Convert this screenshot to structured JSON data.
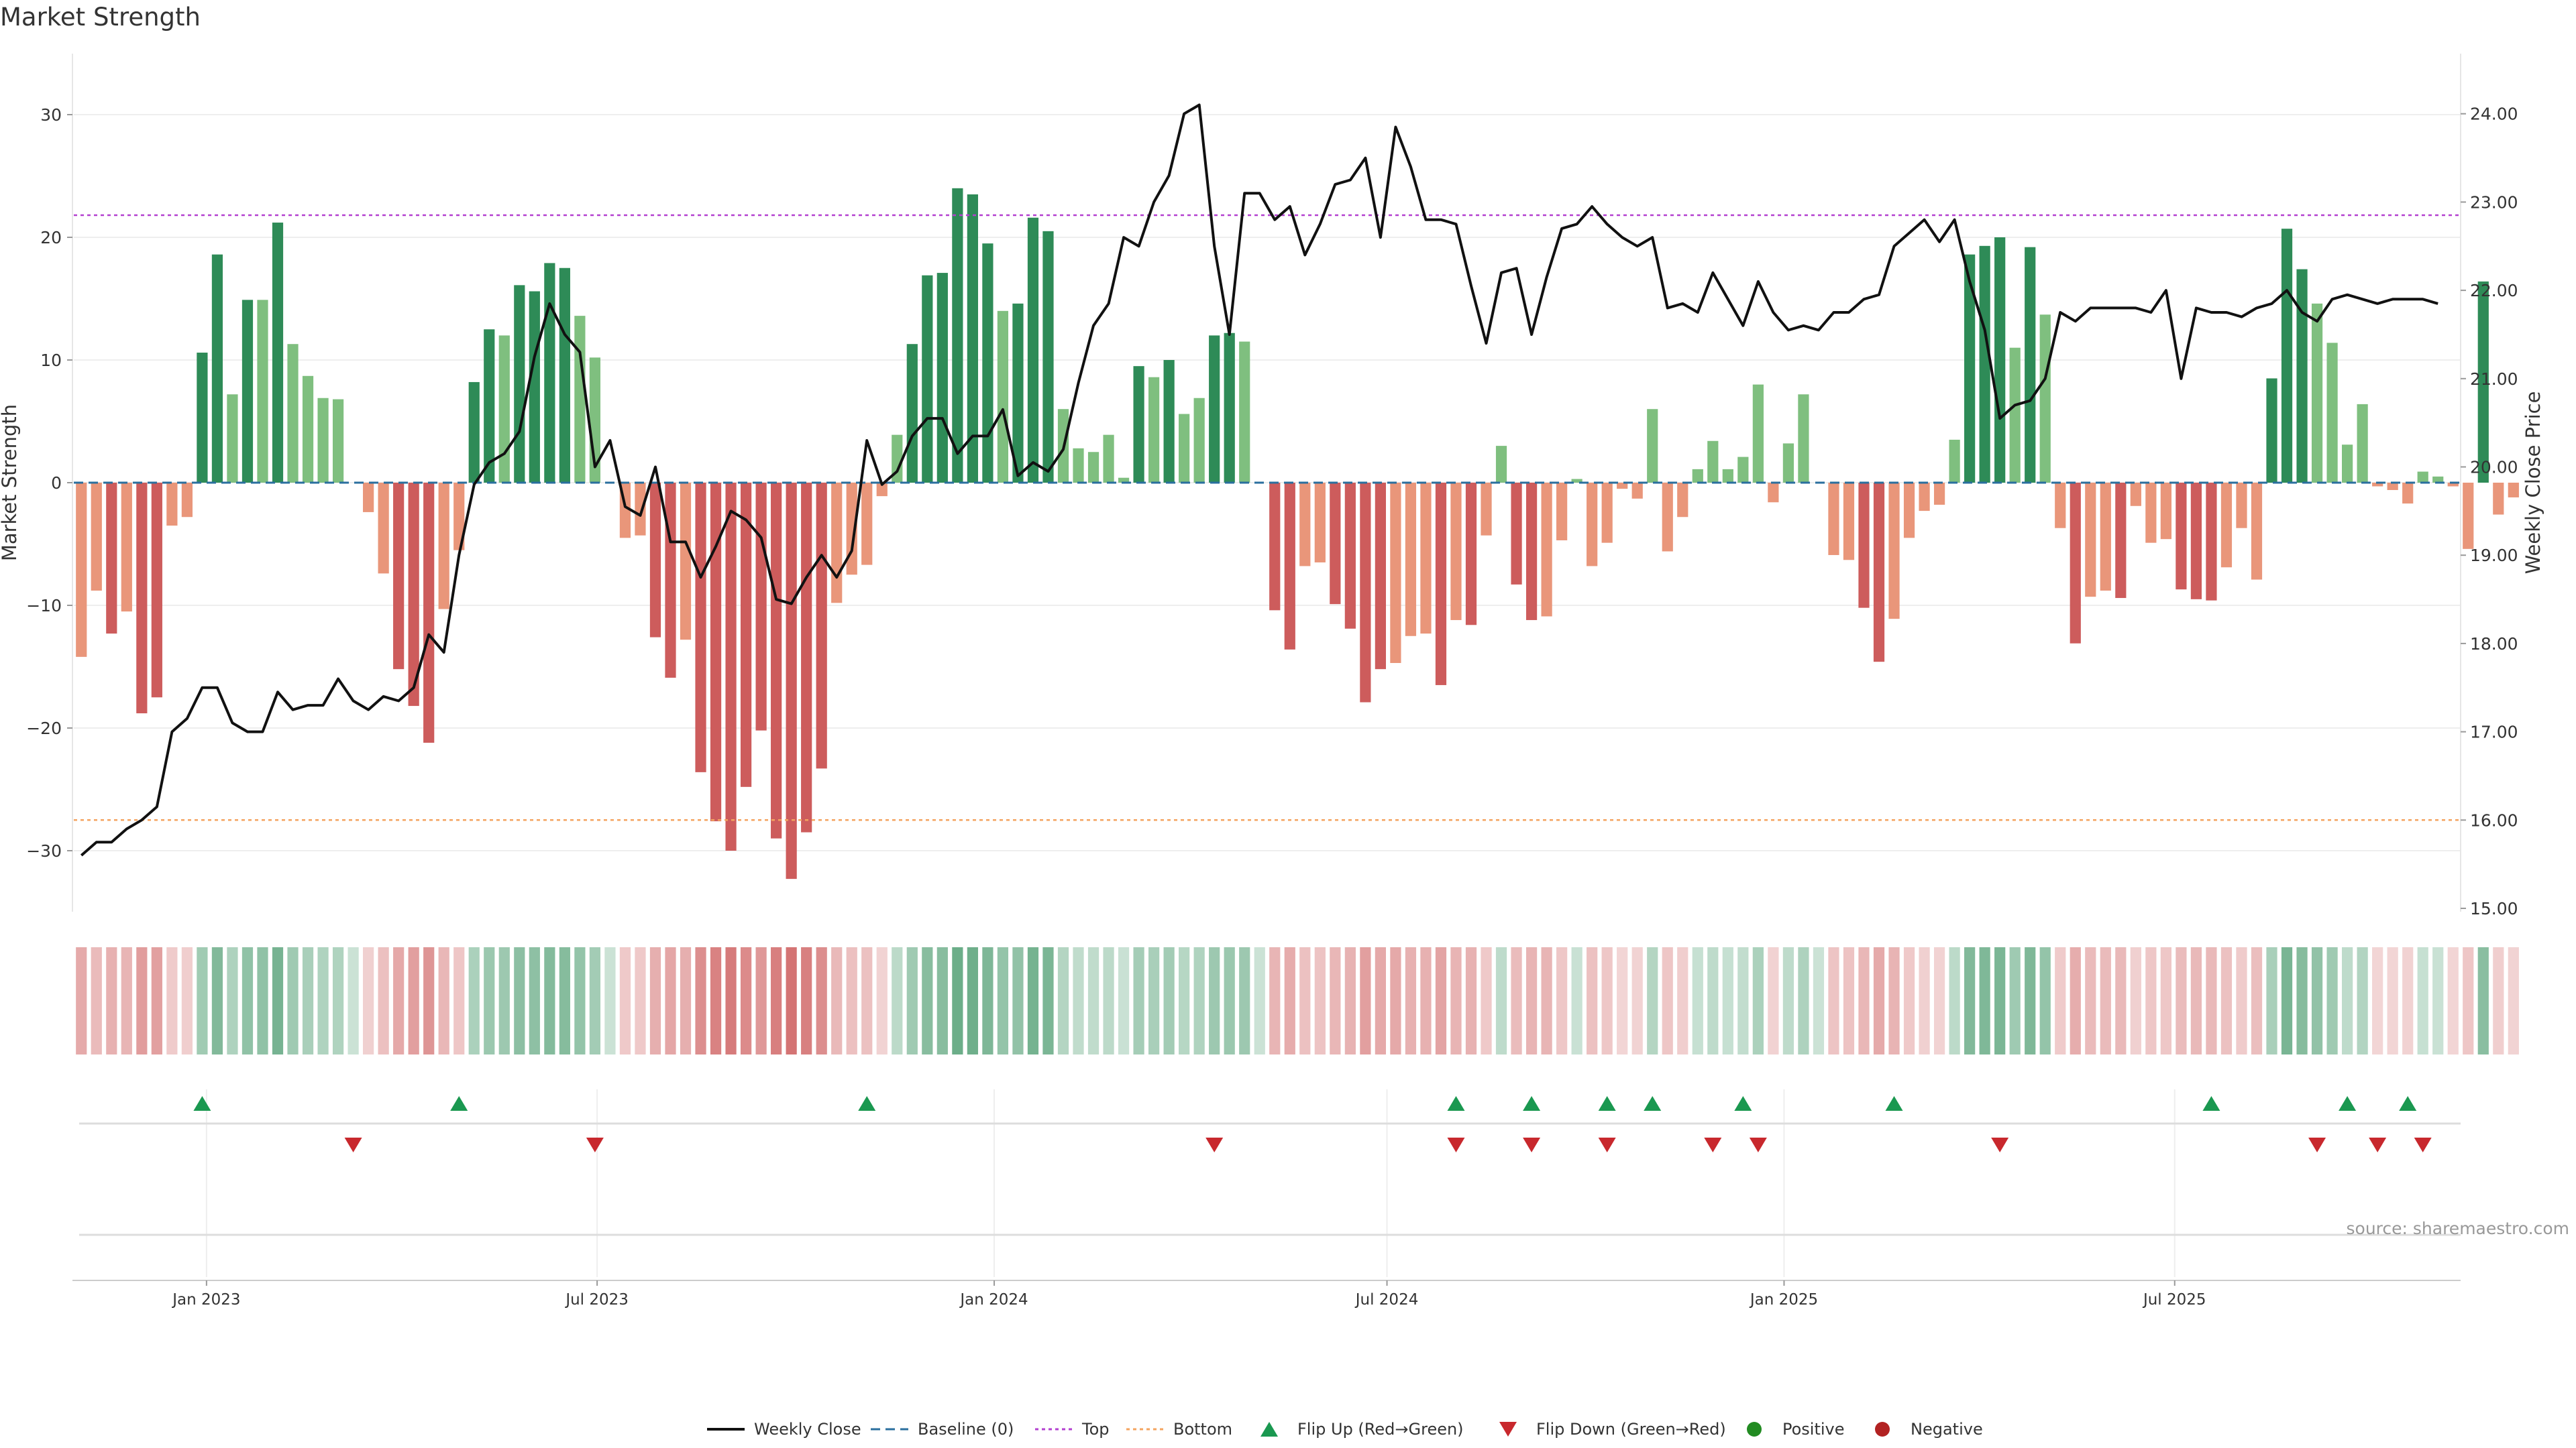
{
  "title": "Market Strength",
  "source": "source: sharemaestro.com",
  "colors": {
    "pos_strong": "#2e8b57",
    "pos_light": "#7fbf7f",
    "neg_strong": "#cd5c5c",
    "neg_light": "#e9967a",
    "line": "#111111",
    "baseline": "#2a6f9e",
    "top": "#b340d0",
    "bottom": "#f4a460",
    "flip_up": "#1a9850",
    "flip_down": "#c8282d",
    "positive": "#228b22",
    "negative": "#b22222"
  },
  "chart_data": {
    "type": "bar+line",
    "ylabel_left": "Market Strength",
    "ylabel_right": "Weekly Close Price",
    "left_ticks": [
      "−30",
      "−20",
      "−10",
      "0",
      "10",
      "20",
      "30"
    ],
    "left_tick_values": [
      -30,
      -20,
      -10,
      0,
      10,
      20,
      30
    ],
    "left_ylim": [
      -35,
      35
    ],
    "right_ticks": [
      "15.00",
      "16.00",
      "17.00",
      "18.00",
      "19.00",
      "20.00",
      "21.00",
      "22.00",
      "23.00",
      "24.00"
    ],
    "right_tick_values": [
      15,
      16,
      17,
      18,
      19,
      20,
      21,
      22,
      23,
      24
    ],
    "right_ylim": [
      14.9,
      24.3
    ],
    "top_threshold": 21.8,
    "bottom_threshold": -27.5,
    "x_ticks": [
      "Jan 2023",
      "Jul 2023",
      "Jan 2024",
      "Jul 2024",
      "Jan 2025",
      "Jul 2025"
    ],
    "x_tick_dates": [
      "2023-01-01",
      "2023-07-01",
      "2024-01-01",
      "2024-07-01",
      "2025-01-01",
      "2025-07-01"
    ],
    "start_date": "2022-11-04",
    "week_count": 158,
    "strength": [
      -14.2,
      -8.8,
      -12.3,
      -10.5,
      -18.8,
      -17.5,
      -3.5,
      -2.8,
      10.6,
      18.6,
      7.2,
      14.9,
      14.9,
      21.2,
      11.3,
      8.7,
      6.9,
      6.8,
      0,
      -2.4,
      -7.4,
      -15.2,
      -18.2,
      -21.2,
      -10.3,
      -5.5,
      8.2,
      12.5,
      12.0,
      16.1,
      15.6,
      17.9,
      17.5,
      13.6,
      10.2,
      0,
      -4.5,
      -4.3,
      -12.6,
      -15.9,
      -12.8,
      -23.6,
      -27.6,
      -30.0,
      -24.8,
      -20.2,
      -29.0,
      -32.3,
      -28.5,
      -23.3,
      -9.8,
      -7.5,
      -6.7,
      -1.1,
      3.9,
      11.3,
      16.9,
      17.1,
      24.0,
      23.5,
      19.5,
      14.0,
      14.6,
      21.6,
      20.5,
      6.0,
      2.8,
      2.5,
      3.9,
      0.4,
      9.5,
      8.6,
      10.0,
      5.6,
      6.9,
      12.0,
      12.2,
      11.5,
      0,
      -10.4,
      -13.6,
      -6.8,
      -6.5,
      -9.9,
      -11.9,
      -17.9,
      -15.2,
      -14.7,
      -12.5,
      -12.3,
      -16.5,
      -11.2,
      -11.6,
      -4.3,
      3.0,
      -8.3,
      -11.2,
      -10.9,
      -4.7,
      0.3,
      -6.8,
      -4.9,
      -0.5,
      -1.3,
      6.0,
      -5.6,
      -2.8,
      1.1,
      3.4,
      1.1,
      2.1,
      8.0,
      -1.6,
      3.2,
      7.2,
      0,
      -5.9,
      -6.3,
      -10.2,
      -14.6,
      -11.1,
      -4.5,
      -2.3,
      -1.8,
      3.5,
      18.6,
      19.3,
      20.0,
      11.0,
      19.2,
      13.7,
      -3.7,
      -13.1,
      -9.3,
      -8.8,
      -9.4,
      -1.9,
      -4.9,
      -4.6,
      -8.7,
      -9.5,
      -9.6,
      -6.9,
      -3.7,
      -7.9,
      8.5,
      20.7,
      17.4,
      14.6,
      11.4,
      3.1,
      6.4,
      -0.3,
      -0.6,
      -1.7,
      0.9,
      0.5,
      -0.3,
      -5.4,
      16.4,
      -2.6,
      -1.2
    ],
    "weekly_close": [
      15.6,
      15.75,
      15.75,
      15.9,
      16.0,
      16.15,
      17.0,
      17.15,
      17.5,
      17.5,
      17.1,
      17.0,
      17.0,
      17.45,
      17.25,
      17.3,
      17.3,
      17.6,
      17.35,
      17.25,
      17.4,
      17.35,
      17.5,
      18.1,
      17.9,
      19.0,
      19.8,
      20.05,
      20.15,
      20.4,
      21.25,
      21.85,
      21.5,
      21.3,
      20.0,
      20.3,
      19.55,
      19.45,
      20.0,
      19.15,
      19.15,
      18.75,
      19.1,
      19.5,
      19.4,
      19.2,
      18.5,
      18.45,
      18.75,
      19.0,
      18.75,
      19.05,
      20.3,
      19.8,
      19.95,
      20.35,
      20.55,
      20.55,
      20.15,
      20.35,
      20.35,
      20.65,
      19.9,
      20.05,
      19.95,
      20.2,
      20.95,
      21.6,
      21.85,
      22.6,
      22.5,
      23.0,
      23.3,
      24.0,
      24.1,
      22.5,
      21.5,
      23.1,
      23.1,
      22.8,
      22.95,
      22.4,
      22.75,
      23.2,
      23.25,
      23.5,
      22.6,
      23.85,
      23.4,
      22.8,
      22.8,
      22.75,
      22.05,
      21.4,
      22.2,
      22.25,
      21.5,
      22.15,
      22.7,
      22.75,
      22.95,
      22.75,
      22.6,
      22.5,
      22.6,
      21.8,
      21.85,
      21.75,
      22.2,
      21.9,
      21.6,
      22.1,
      21.75,
      21.55,
      21.6,
      21.55,
      21.75,
      21.75,
      21.9,
      21.95,
      22.5,
      22.65,
      22.8,
      22.55,
      22.8,
      22.1,
      21.55,
      20.55,
      20.7,
      20.75,
      21.0,
      21.75,
      21.65,
      21.8,
      21.8,
      21.8,
      21.8,
      21.75,
      22.0,
      21.0,
      21.8,
      21.75,
      21.75,
      21.7,
      21.8,
      21.85,
      22.0,
      21.75,
      21.65,
      21.9,
      21.95,
      21.9,
      21.85,
      21.9,
      21.9,
      21.9,
      21.85
    ],
    "flip_up_weeks": [
      8,
      25,
      52,
      91,
      96,
      101,
      104,
      110,
      120,
      141,
      150,
      154
    ],
    "flip_down_weeks": [
      18,
      34,
      75,
      91,
      96,
      101,
      108,
      111,
      127,
      148,
      152,
      155
    ]
  },
  "legend": [
    {
      "key": "line",
      "label": "Weekly Close"
    },
    {
      "key": "baseline",
      "label": "Baseline (0)"
    },
    {
      "key": "top",
      "label": "Top"
    },
    {
      "key": "bottom",
      "label": "Bottom"
    },
    {
      "key": "flip_up",
      "label": "Flip Up (Red→Green)"
    },
    {
      "key": "flip_down",
      "label": "Flip Down (Green→Red)"
    },
    {
      "key": "positive",
      "label": "Positive"
    },
    {
      "key": "negative",
      "label": "Negative"
    }
  ]
}
